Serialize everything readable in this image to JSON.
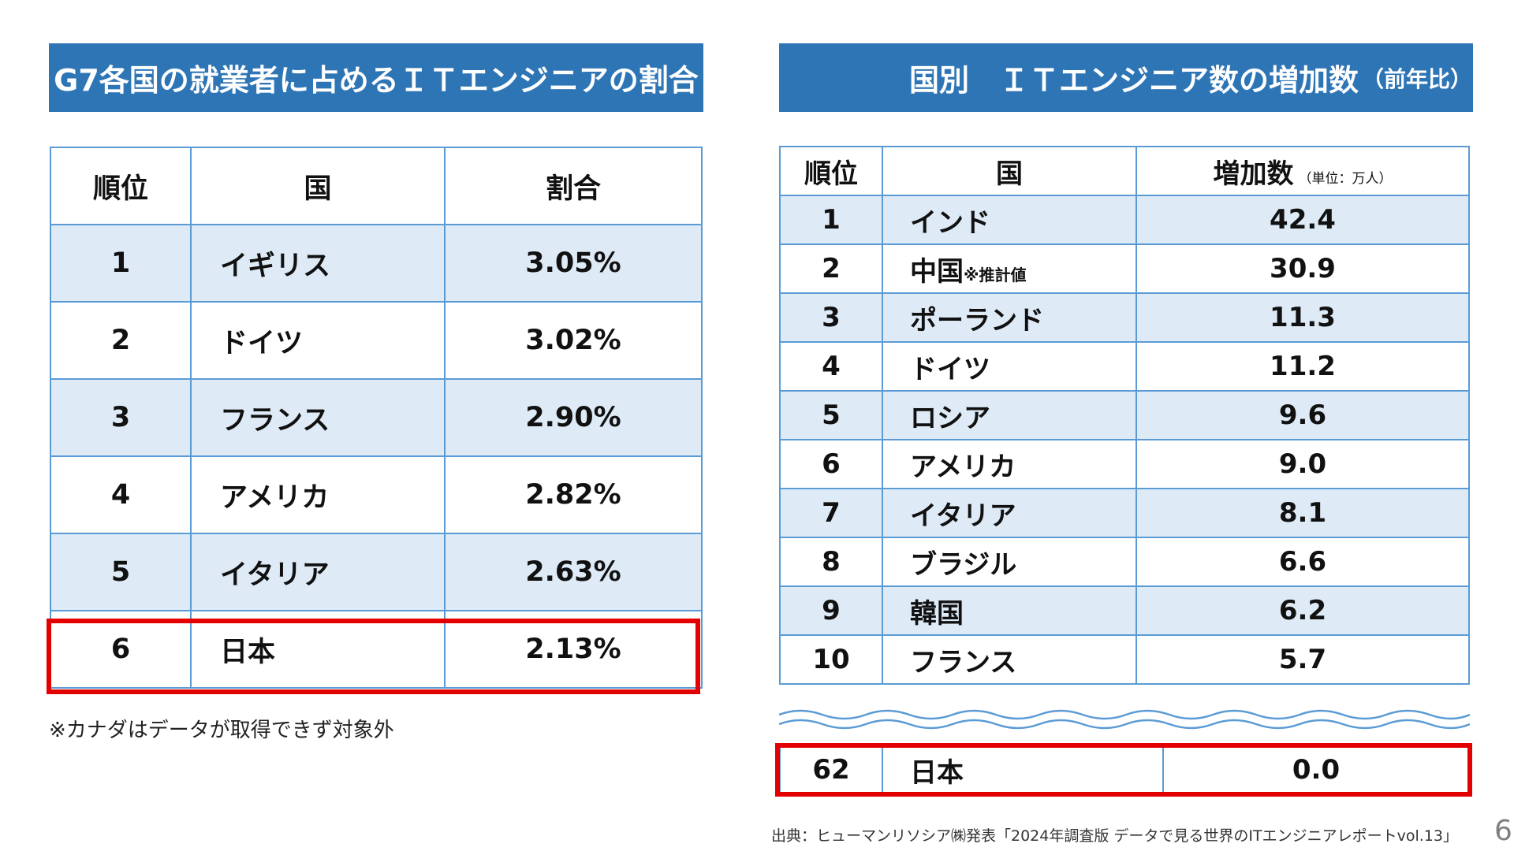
{
  "left_panel": {
    "title": "G7各国の就業者に占めるＩＴエンジニアの割合",
    "headers": [
      "順位",
      "国",
      "割合"
    ],
    "rows": [
      {
        "rank": "1",
        "country": "イギリス",
        "value": "3.05%"
      },
      {
        "rank": "2",
        "country": "ドイツ",
        "value": "3.02%"
      },
      {
        "rank": "3",
        "country": "フランス",
        "value": "2.90%"
      },
      {
        "rank": "4",
        "country": "アメリカ",
        "value": "2.82%"
      },
      {
        "rank": "5",
        "country": "イタリア",
        "value": "2.63%"
      },
      {
        "rank": "6",
        "country": "日本",
        "value": "2.13%"
      }
    ],
    "footnote": "※カナダはデータが取得できず対象外"
  },
  "right_panel": {
    "title": "国別　ＩＴエンジニア数の増加数",
    "title_suffix": "（前年比）",
    "headers": [
      "順位",
      "国",
      "増加数"
    ],
    "unit_note": "（単位：万人）",
    "rows": [
      {
        "rank": "1",
        "country": "インド",
        "value": "42.4"
      },
      {
        "rank": "2",
        "country": "中国",
        "country_note": "※推計値",
        "value": "30.9"
      },
      {
        "rank": "3",
        "country": "ポーランド",
        "value": "11.3"
      },
      {
        "rank": "4",
        "country": "ドイツ",
        "value": "11.2"
      },
      {
        "rank": "5",
        "country": "ロシア",
        "value": "9.6"
      },
      {
        "rank": "6",
        "country": "アメリカ",
        "value": "9.0"
      },
      {
        "rank": "7",
        "country": "イタリア",
        "value": "8.1"
      },
      {
        "rank": "8",
        "country": "ブラジル",
        "value": "6.6"
      },
      {
        "rank": "9",
        "country": "韓国",
        "value": "6.2"
      },
      {
        "rank": "10",
        "country": "フランス",
        "value": "5.7"
      }
    ],
    "japan_row": {
      "rank": "62",
      "country": "日本",
      "value": "0.0"
    }
  },
  "source": "出典：ヒューマンリソシア㈱発表「2024年調査版 データで見る世界のITエンジニアレポートvol.13」",
  "page_number": "6",
  "colors": {
    "header_bg": "#2e75b6",
    "row_shade": "#deebf7",
    "border": "#5b9bd5",
    "highlight": "#e30000"
  }
}
